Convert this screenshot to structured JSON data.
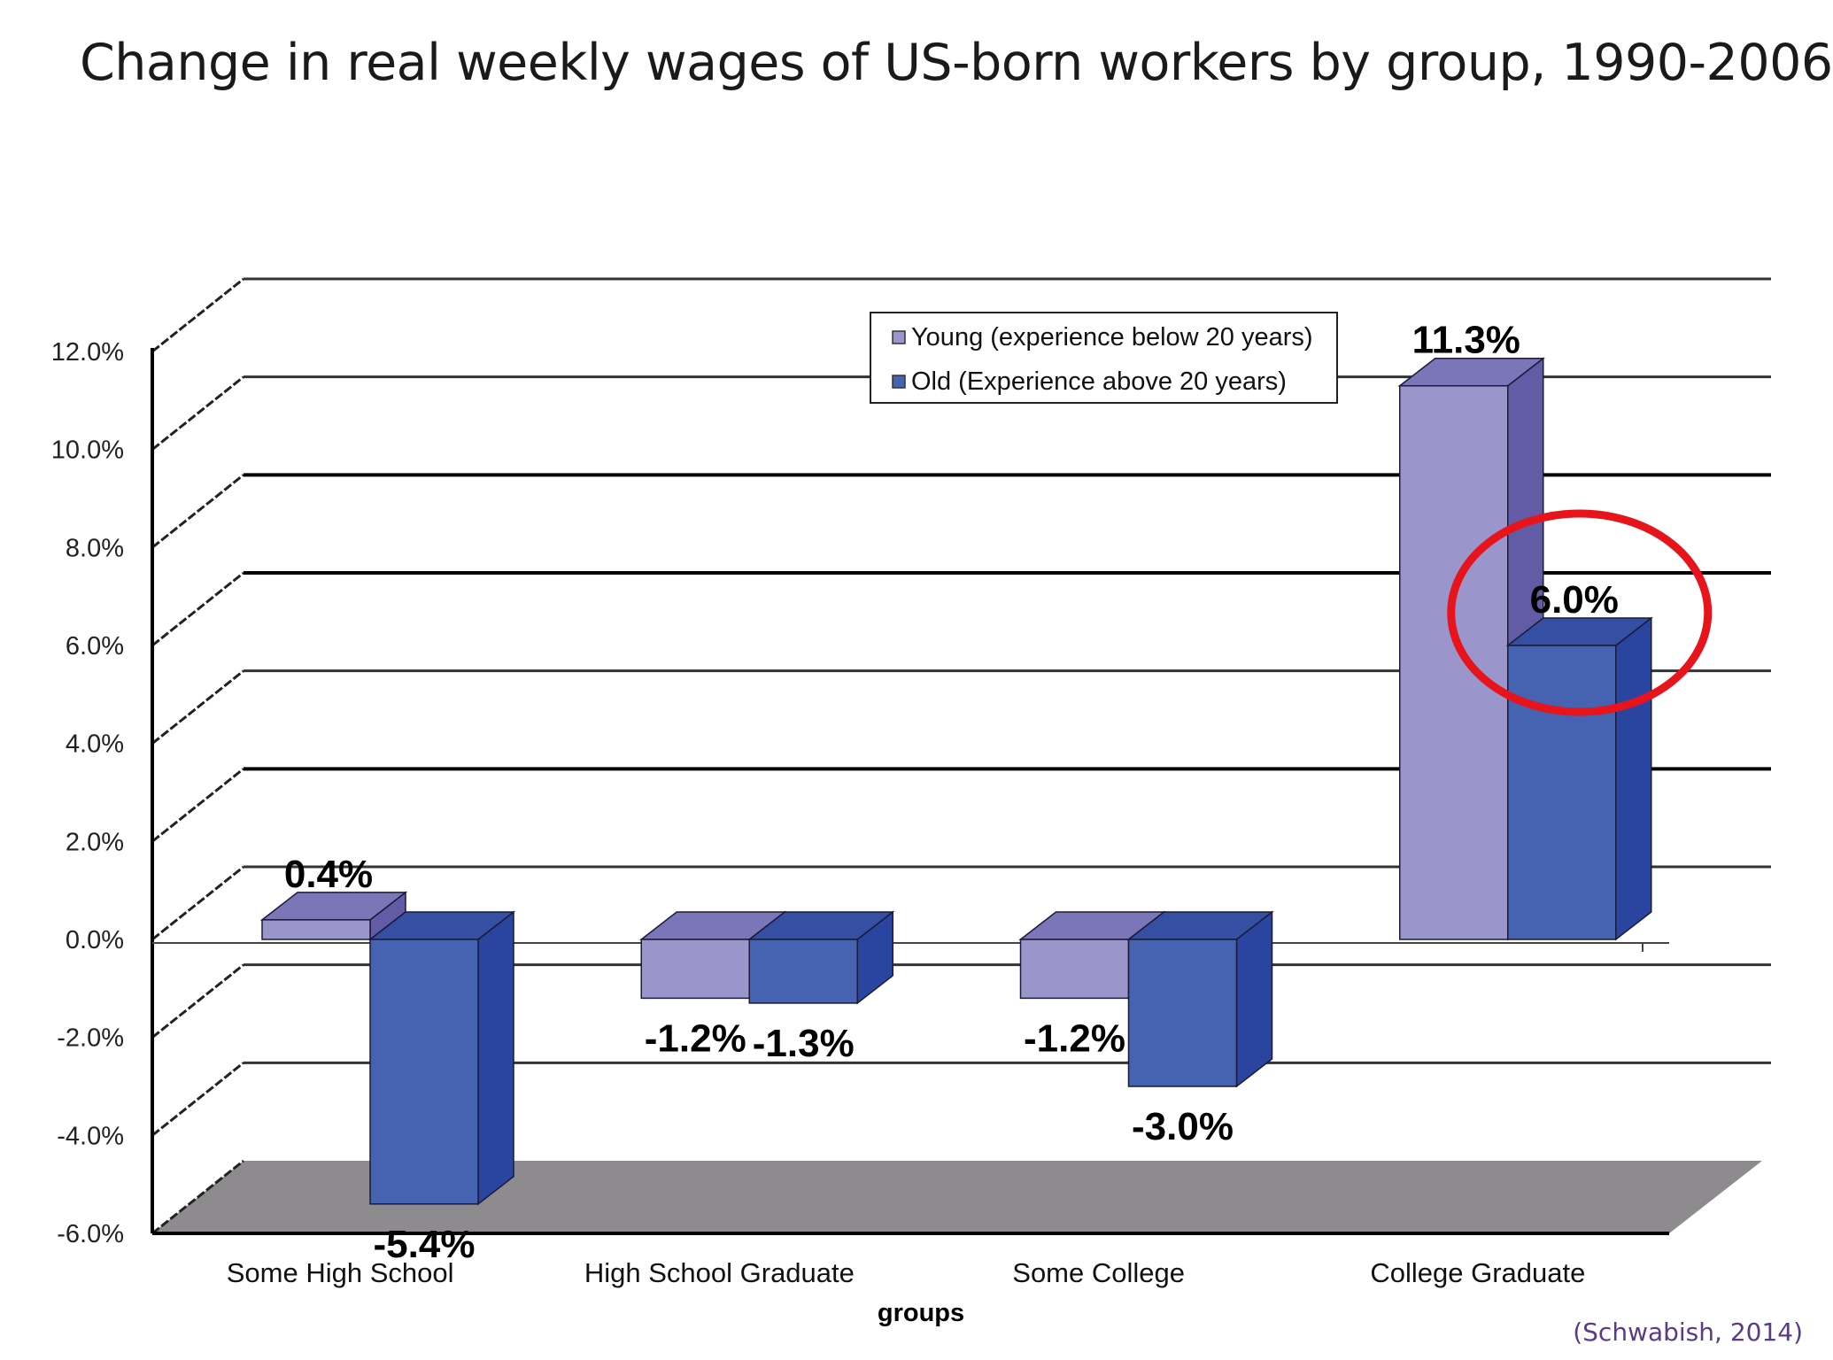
{
  "page": {
    "title": "Change in real weekly wages of US-born workers by group, 1990-2006",
    "source": "(Schwabish, 2014)"
  },
  "chart_data": {
    "type": "bar",
    "style": "3d-clustered",
    "title": "Change in real weekly wages of US-born workers by group, 1990-2006",
    "xlabel": "groups",
    "ylabel": "",
    "ylim": [
      -6,
      12
    ],
    "yticks": [
      12,
      10,
      8,
      6,
      4,
      2,
      0,
      -2,
      -4,
      -6
    ],
    "ytick_labels": [
      "12.0%",
      "10.0%",
      "8.0%",
      "6.0%",
      "4.0%",
      "2.0%",
      "0.0%",
      "-2.0%",
      "-4.0%",
      "-6.0%"
    ],
    "categories": [
      "Some High School",
      "High School Graduate",
      "Some College",
      "College Graduate"
    ],
    "series": [
      {
        "name": "Young (experience below 20 years)",
        "values": [
          0.4,
          -1.2,
          -1.2,
          11.3
        ],
        "labels": [
          "0.4%",
          "-1.2%",
          "-1.2%",
          "11.3%"
        ],
        "color": "#9a96cc",
        "top_color": "#7b76b8",
        "side_color": "#625ca6"
      },
      {
        "name": "Old (Experience above 20 years)",
        "values": [
          -5.4,
          -1.3,
          -3.0,
          6.0
        ],
        "labels": [
          "-5.4%",
          "-1.3%",
          "-3.0%",
          "6.0%"
        ],
        "color": "#4563b0",
        "top_color": "#3550a3",
        "side_color": "#2a45a0"
      }
    ],
    "legend": {
      "placement": "top-center",
      "entries": [
        "Young (experience below 20 years)",
        "Old (Experience above 20 years)"
      ]
    },
    "annotations": [
      {
        "type": "ellipse-highlight",
        "target": "College Graduate / Old (Experience above 20 years)",
        "color": "#e8141c"
      }
    ],
    "grid": true,
    "floor_color": "#8e8b8e"
  }
}
